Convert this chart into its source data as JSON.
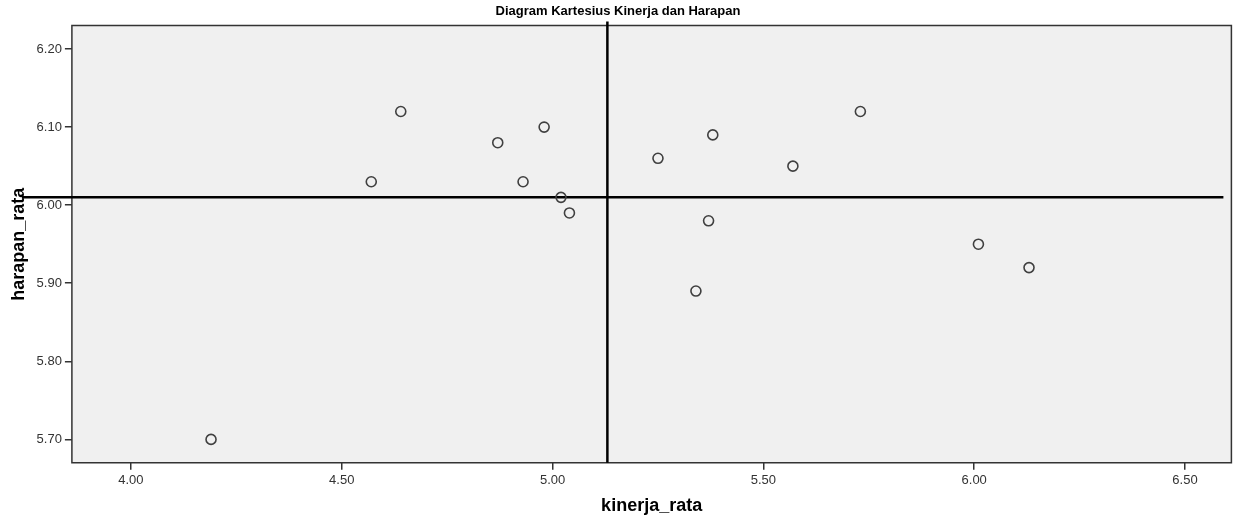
{
  "chart_data": {
    "type": "scatter",
    "title": "Diagram Kartesius Kinerja dan Harapan",
    "xlabel": "kinerja_rata",
    "ylabel": "harapan_rata",
    "series": [
      {
        "color": "#404040",
        "x": [
          4.64,
          4.98,
          4.87,
          4.57,
          4.93,
          5.02,
          5.04,
          4.19,
          5.73,
          5.38,
          5.25,
          5.57,
          5.37,
          6.01,
          6.13,
          5.34
        ],
        "values": [
          6.12,
          6.1,
          6.08,
          6.03,
          6.03,
          6.01,
          5.99,
          5.7,
          6.12,
          6.09,
          6.06,
          6.05,
          5.98,
          5.95,
          5.92,
          5.89
        ]
      }
    ],
    "marker": "circle",
    "xlim": [
      3.86,
      6.61
    ],
    "ylim": [
      5.67,
      6.23
    ],
    "xticks": [
      {
        "value": 4,
        "label": "4.00"
      },
      {
        "value": 4.5,
        "label": "4.50"
      },
      {
        "value": 5,
        "label": "5.00"
      },
      {
        "value": 5.5,
        "label": "5.50"
      },
      {
        "value": 6,
        "label": "6.00"
      },
      {
        "value": 6.5,
        "label": "6.50"
      }
    ],
    "yticks": [
      {
        "value": 5.7,
        "label": "5.70"
      },
      {
        "value": 5.8,
        "label": "5.80"
      },
      {
        "value": 5.9,
        "label": "5.90"
      },
      {
        "value": 6,
        "label": "6.00"
      },
      {
        "value": 6.1,
        "label": "6.10"
      },
      {
        "value": 6.2,
        "label": "6.20"
      }
    ],
    "ref_lines": [
      {
        "axis": "x",
        "value": 5.13,
        "color": "#000000"
      },
      {
        "axis": "y",
        "value": 6.01,
        "color": "#000000"
      }
    ],
    "legend": false
  }
}
